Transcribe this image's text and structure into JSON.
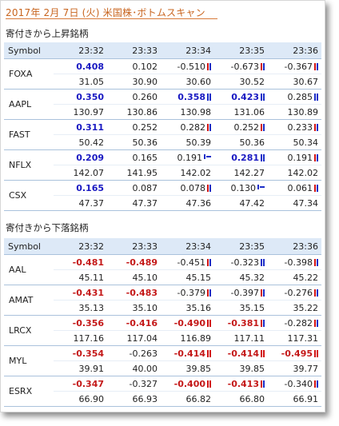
{
  "title": "2017年 2月 7日 (火) 米国株･ボトムスキャン",
  "colors": {
    "positive": "#1919c2",
    "negative": "#c41818",
    "header_bg": "#dde9f7",
    "title": "#c8641e"
  },
  "sections": [
    {
      "heading": "寄付きから上昇銘柄",
      "columns": [
        "Symbol",
        "23:32",
        "23:33",
        "23:34",
        "23:35",
        "23:36"
      ],
      "rows": [
        {
          "symbol": "FOXA",
          "changes": [
            {
              "v": "0.408",
              "style": "pos",
              "bars": []
            },
            {
              "v": "0.102",
              "style": "",
              "bars": []
            },
            {
              "v": "-0.510",
              "style": "",
              "bars": [
                "red",
                "blue"
              ]
            },
            {
              "v": "-0.673",
              "style": "",
              "bars": [
                "red",
                "blue"
              ]
            },
            {
              "v": "-0.367",
              "style": "",
              "bars": [
                "red",
                "blue"
              ]
            }
          ],
          "prices": [
            "31.05",
            "30.90",
            "30.60",
            "30.52",
            "30.67"
          ]
        },
        {
          "symbol": "AAPL",
          "changes": [
            {
              "v": "0.350",
              "style": "pos",
              "bars": []
            },
            {
              "v": "0.260",
              "style": "",
              "bars": []
            },
            {
              "v": "0.358",
              "style": "pos",
              "bars": [
                "blue",
                "blue"
              ]
            },
            {
              "v": "0.423",
              "style": "pos",
              "bars": [
                "blue",
                "blue"
              ]
            },
            {
              "v": "0.285",
              "style": "",
              "bars": [
                "blue",
                "blue"
              ]
            }
          ],
          "prices": [
            "130.97",
            "130.86",
            "130.98",
            "131.06",
            "130.89"
          ]
        },
        {
          "symbol": "FAST",
          "changes": [
            {
              "v": "0.311",
              "style": "pos",
              "bars": []
            },
            {
              "v": "0.252",
              "style": "",
              "bars": []
            },
            {
              "v": "0.282",
              "style": "",
              "bars": [
                "red",
                "blue"
              ]
            },
            {
              "v": "0.252",
              "style": "",
              "bars": [
                "red",
                "blue"
              ]
            },
            {
              "v": "0.233",
              "style": "",
              "bars": [
                "red",
                "blue"
              ]
            }
          ],
          "prices": [
            "50.42",
            "50.36",
            "50.39",
            "50.36",
            "50.34"
          ]
        },
        {
          "symbol": "NFLX",
          "changes": [
            {
              "v": "0.209",
              "style": "pos",
              "bars": []
            },
            {
              "v": "0.165",
              "style": "",
              "bars": []
            },
            {
              "v": "0.191",
              "style": "",
              "bars": [
                "blue-short",
                "dash"
              ]
            },
            {
              "v": "0.281",
              "style": "pos",
              "bars": [
                "blue",
                "blue"
              ]
            },
            {
              "v": "0.191",
              "style": "",
              "bars": [
                "red",
                "blue"
              ]
            }
          ],
          "prices": [
            "142.07",
            "141.95",
            "142.02",
            "142.27",
            "142.02"
          ]
        },
        {
          "symbol": "CSX",
          "changes": [
            {
              "v": "0.165",
              "style": "pos",
              "bars": []
            },
            {
              "v": "0.087",
              "style": "",
              "bars": []
            },
            {
              "v": "0.078",
              "style": "",
              "bars": [
                "red",
                "blue"
              ]
            },
            {
              "v": "0.130",
              "style": "",
              "bars": [
                "blue-short",
                "dash"
              ]
            },
            {
              "v": "0.061",
              "style": "",
              "bars": [
                "red",
                "blue"
              ]
            }
          ],
          "prices": [
            "47.37",
            "47.37",
            "47.36",
            "47.42",
            "47.34"
          ]
        }
      ]
    },
    {
      "heading": "寄付きから下落銘柄",
      "columns": [
        "Symbol",
        "23:32",
        "23:33",
        "23:34",
        "23:35",
        "23:36"
      ],
      "rows": [
        {
          "symbol": "AAL",
          "changes": [
            {
              "v": "-0.481",
              "style": "neg",
              "bars": []
            },
            {
              "v": "-0.489",
              "style": "neg",
              "bars": []
            },
            {
              "v": "-0.451",
              "style": "",
              "bars": [
                "red",
                "blue"
              ]
            },
            {
              "v": "-0.323",
              "style": "",
              "bars": [
                "blue",
                "blue"
              ]
            },
            {
              "v": "-0.398",
              "style": "",
              "bars": [
                "red",
                "blue"
              ]
            }
          ],
          "prices": [
            "45.11",
            "45.10",
            "45.15",
            "45.32",
            "45.22"
          ]
        },
        {
          "symbol": "AMAT",
          "changes": [
            {
              "v": "-0.431",
              "style": "neg",
              "bars": []
            },
            {
              "v": "-0.483",
              "style": "neg",
              "bars": []
            },
            {
              "v": "-0.379",
              "style": "",
              "bars": [
                "red",
                "blue"
              ]
            },
            {
              "v": "-0.397",
              "style": "",
              "bars": [
                "red",
                "blue"
              ]
            },
            {
              "v": "-0.276",
              "style": "",
              "bars": [
                "red",
                "blue"
              ]
            }
          ],
          "prices": [
            "35.13",
            "35.10",
            "35.16",
            "35.15",
            "35.22"
          ]
        },
        {
          "symbol": "LRCX",
          "changes": [
            {
              "v": "-0.356",
              "style": "neg",
              "bars": []
            },
            {
              "v": "-0.416",
              "style": "neg",
              "bars": []
            },
            {
              "v": "-0.490",
              "style": "neg",
              "bars": [
                "red",
                "red"
              ]
            },
            {
              "v": "-0.381",
              "style": "neg",
              "bars": [
                "red",
                "blue"
              ]
            },
            {
              "v": "-0.282",
              "style": "",
              "bars": [
                "red",
                "blue"
              ]
            }
          ],
          "prices": [
            "117.16",
            "117.04",
            "116.89",
            "117.11",
            "117.31"
          ]
        },
        {
          "symbol": "MYL",
          "changes": [
            {
              "v": "-0.354",
              "style": "neg",
              "bars": []
            },
            {
              "v": "-0.263",
              "style": "",
              "bars": []
            },
            {
              "v": "-0.414",
              "style": "neg",
              "bars": [
                "red",
                "red"
              ]
            },
            {
              "v": "-0.414",
              "style": "neg",
              "bars": [
                "red",
                "red"
              ]
            },
            {
              "v": "-0.495",
              "style": "neg",
              "bars": [
                "red",
                "red"
              ]
            }
          ],
          "prices": [
            "39.91",
            "40.00",
            "39.85",
            "39.85",
            "39.77"
          ]
        },
        {
          "symbol": "ESRX",
          "changes": [
            {
              "v": "-0.347",
              "style": "neg",
              "bars": []
            },
            {
              "v": "-0.327",
              "style": "",
              "bars": []
            },
            {
              "v": "-0.400",
              "style": "neg",
              "bars": [
                "red",
                "red"
              ]
            },
            {
              "v": "-0.413",
              "style": "neg",
              "bars": [
                "red",
                "blue"
              ]
            },
            {
              "v": "-0.340",
              "style": "",
              "bars": [
                "red",
                "blue"
              ]
            }
          ],
          "prices": [
            "66.90",
            "66.93",
            "66.82",
            "66.80",
            "66.91"
          ]
        }
      ]
    }
  ]
}
